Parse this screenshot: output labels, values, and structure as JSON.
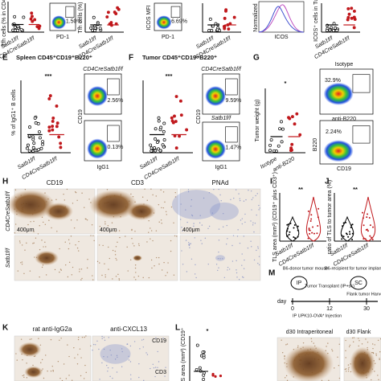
{
  "top": {
    "gate_1": "1.50%",
    "gate_1_axis": "PD-1",
    "gate_2": "6.69%",
    "gate_2_axis": "PD-1",
    "mfi_axis": "ICOS MFI",
    "hist_y": "Normalized",
    "hist_x": "ICOS",
    "icos_axis": "ICOS⁺ cells in Tum",
    "tfh_axis_1": "Tfh cells (% in CD4⁺)",
    "tfh_axis_2": "Tfh cells (%)",
    "groups": [
      "Satb1f/f",
      "CD4CreSatb1f/f"
    ]
  },
  "panel_e": {
    "letter": "E",
    "title": "Spleen CD45⁺CD19⁺B220⁺",
    "sig": "***",
    "y_label": "% of IgG1⁺ B cells",
    "groups": [
      "Satb1f/f",
      "CD4CreSatb1f/f"
    ],
    "gate_top": "2.56%",
    "gate_bottom": "0.13%",
    "flow_y": "CD19",
    "flow_x": "IgG1",
    "flow_label": "CD4CreSatb1f/f"
  },
  "panel_f": {
    "letter": "F",
    "title": "Tumor CD45⁺CD19⁺B220⁺",
    "sig": "***",
    "groups": [
      "Satb1f/f",
      "CD4CreSatb1f/f"
    ],
    "gate_top": "9.59%",
    "gate_bottom": "1.47%",
    "flow_top_label": "CD4CreSatb1f/f",
    "flow_bottom_label": "Satb1f/f",
    "flow_y": "CD19",
    "flow_x": "IgG1"
  },
  "panel_g": {
    "letter": "G",
    "sig": "*",
    "y_label": "Tumor weight (g)",
    "groups": [
      "Isotype",
      "anti-B220"
    ],
    "flow_top_label": "Isotype",
    "gate_top": "32.9%",
    "flow_bottom_label": "anti-B220",
    "gate_bottom": "2.24%",
    "flow_y": "B220",
    "flow_x": "CD19"
  },
  "panel_h": {
    "letter": "H",
    "columns": [
      "CD19",
      "CD3",
      "PNAd"
    ],
    "rows": [
      "CD4CreSatb1f/f",
      "Satb1f/f"
    ],
    "scale": "400μm"
  },
  "panel_i": {
    "letter": "I",
    "sig": "**",
    "y_label": "TLS area (mm²) (CD19⁺ plus CD3⁺)",
    "groups": [
      "Satb1f/f",
      "CD4CreSatb1f/f"
    ]
  },
  "panel_j": {
    "letter": "J",
    "sig": "**",
    "y_label": "ratio of TLS to tumor area (%)",
    "groups": [
      "Satb1f/f",
      "CD4CreSatb1f/f"
    ]
  },
  "panel_m": {
    "letter": "M",
    "ip": "IP",
    "sc": "SC",
    "donor": "B6-donor tumor mouse",
    "recipient": "B6-recipient for tumor implant",
    "transplant": "Tumor Transplant (IP+sc)",
    "day": "day",
    "days": [
      "0",
      "12",
      "30"
    ],
    "injection": "IP UPK10-OVA* Injection",
    "harvest": "Flank tumor Harvest",
    "img_1": "d30 Intraperitoneal",
    "img_2": "d30 Flank"
  },
  "panel_k": {
    "letter": "K",
    "columns": [
      "rat anti-IgG2a",
      "anti-CXCL13"
    ],
    "marker_1": "CD19",
    "marker_2": "CD3"
  },
  "panel_l": {
    "letter": "L",
    "sig": "*",
    "y_label": "TLS area (mm²) (CD19⁺"
  }
}
